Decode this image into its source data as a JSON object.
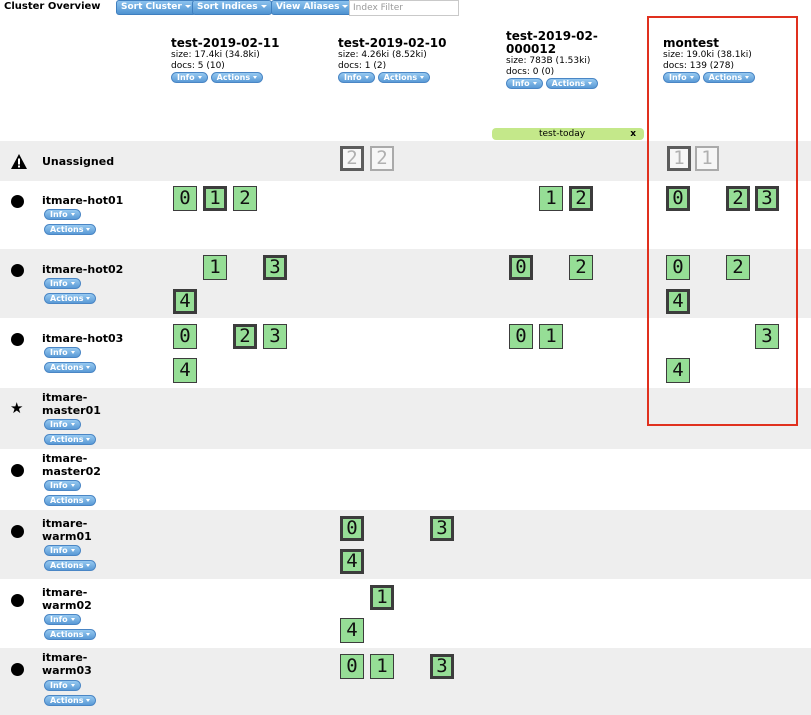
{
  "toolbar": {
    "title": "Cluster Overview",
    "sort_cluster": "Sort Cluster",
    "sort_indices": "Sort Indices",
    "view_aliases": "View Aliases",
    "filter_placeholder": "Index Filter"
  },
  "common": {
    "info": "Info",
    "actions": "Actions"
  },
  "indices": [
    {
      "name": "test-2019-02-11",
      "size": "size: 17.4ki (34.8ki)",
      "docs": "docs: 5 (10)"
    },
    {
      "name": "test-2019-02-10",
      "size": "size: 4.26ki (8.52ki)",
      "docs": "docs: 1 (2)"
    },
    {
      "name_line1": "test-2019-02-",
      "name_line2": "000012",
      "size": "size: 783B (1.53ki)",
      "docs": "docs: 0 (0)"
    },
    {
      "name": "montest",
      "size": "size: 19.0ki (38.1ki)",
      "docs": "docs: 139 (278)"
    }
  ],
  "alias": {
    "label": "test-today",
    "remove": "x"
  },
  "nodes": {
    "unassigned": {
      "name": "Unassigned",
      "icon": "warning-icon"
    },
    "hot01": {
      "name": "itmare-hot01",
      "icon": "data-node-dot-icon"
    },
    "hot02": {
      "name": "itmare-hot02",
      "icon": "data-node-dot-icon"
    },
    "hot03": {
      "name": "itmare-hot03",
      "icon": "data-node-dot-icon"
    },
    "master01": {
      "line1": "itmare-",
      "line2": "master01",
      "icon": "master-star-icon"
    },
    "master02": {
      "line1": "itmare-",
      "line2": "master02",
      "icon": "data-node-dot-icon"
    },
    "warm01": {
      "line1": "itmare-",
      "line2": "warm01",
      "icon": "data-node-dot-icon"
    },
    "warm02": {
      "line1": "itmare-",
      "line2": "warm02",
      "icon": "data-node-dot-icon"
    },
    "warm03": {
      "line1": "itmare-",
      "line2": "warm03",
      "icon": "data-node-dot-icon"
    }
  },
  "shards": {
    "unassigned": {
      "test_2019_02_10": [
        "2",
        "2"
      ],
      "montest": [
        "1",
        "1"
      ]
    },
    "hot01": {
      "test_2019_02_11": [
        "0",
        "1",
        "2"
      ],
      "test_2019_02_000012": [
        "1",
        "2"
      ],
      "montest": [
        "0",
        "2",
        "3"
      ]
    },
    "hot02": {
      "test_2019_02_11": [
        "1",
        "3",
        "4"
      ],
      "test_2019_02_000012": [
        "0",
        "2"
      ],
      "montest": [
        "0",
        "2",
        "4"
      ]
    },
    "hot03": {
      "test_2019_02_11": [
        "0",
        "2",
        "3",
        "4"
      ],
      "test_2019_02_000012": [
        "0",
        "1"
      ],
      "montest": [
        "3",
        "4"
      ]
    },
    "warm01": {
      "test_2019_02_10": [
        "0",
        "3",
        "4"
      ]
    },
    "warm02": {
      "test_2019_02_10": [
        "1",
        "4"
      ]
    },
    "warm03": {
      "test_2019_02_10": [
        "0",
        "1",
        "3"
      ]
    }
  },
  "colors": {
    "shard_fill": "#96de96",
    "shard_border": "#3c3c3c",
    "alias_fill": "#c4e88a",
    "button_blue": "#4f93d1",
    "highlight_border": "#e0301e",
    "row_stripe": "#eeeeee"
  }
}
